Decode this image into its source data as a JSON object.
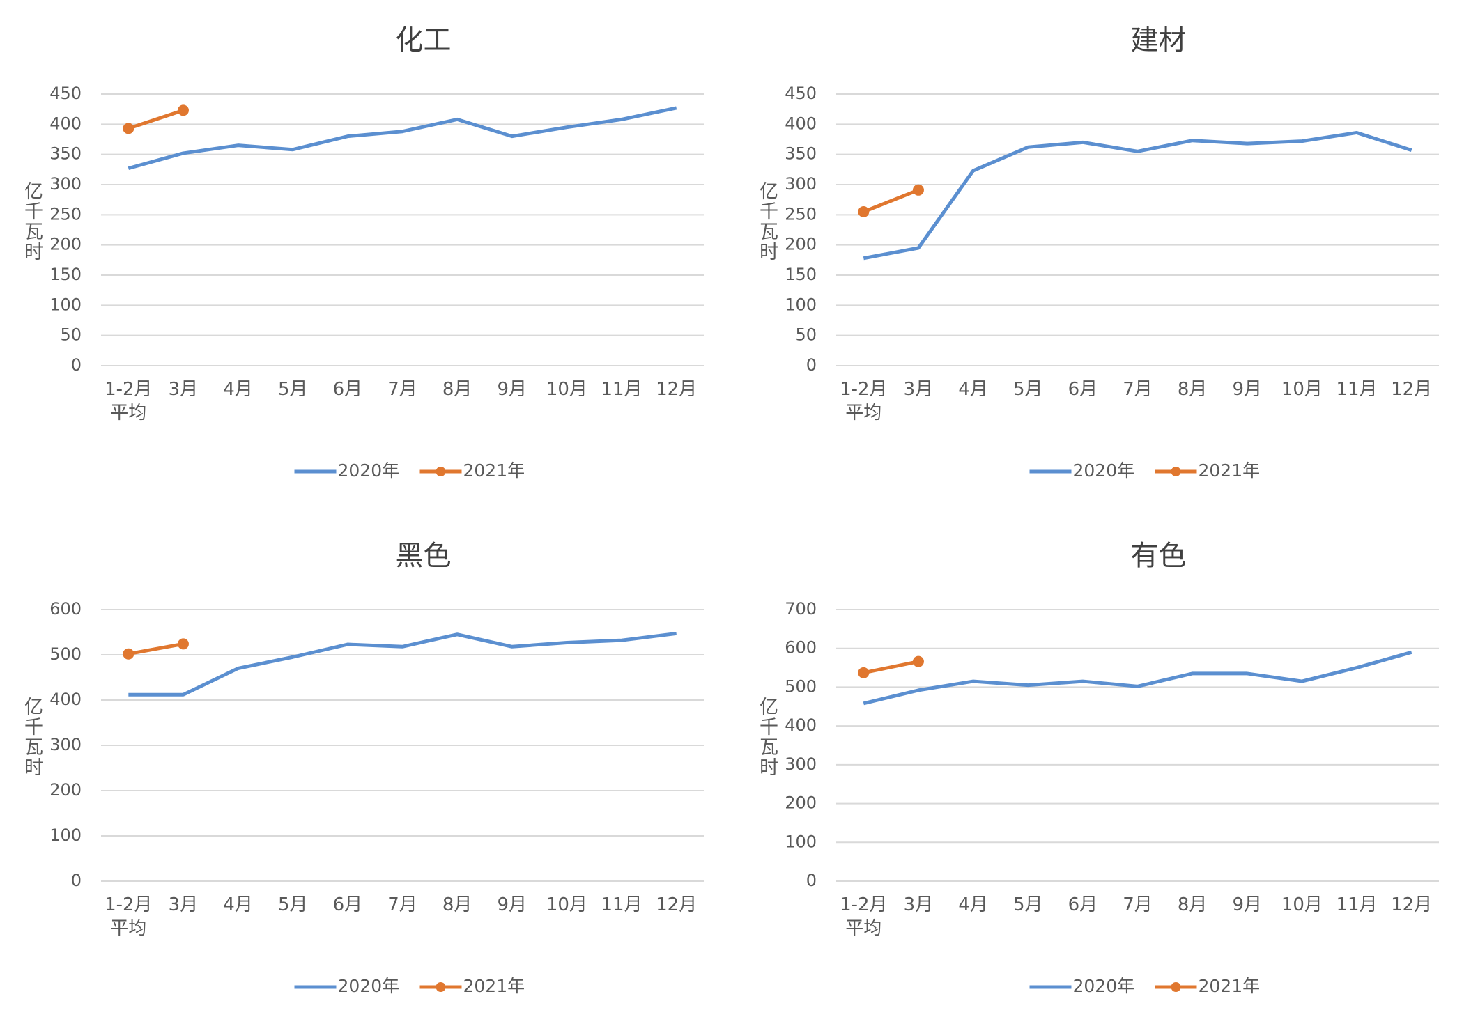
{
  "chart_data": [
    {
      "type": "line",
      "title": "化工",
      "y_label": "亿千瓦时",
      "categories": [
        "1-2月平均",
        "3月",
        "4月",
        "5月",
        "6月",
        "7月",
        "8月",
        "9月",
        "10月",
        "11月",
        "12月"
      ],
      "series": [
        {
          "name": "2020年",
          "color": "#5b8fd0",
          "values": [
            327,
            352,
            365,
            358,
            380,
            388,
            408,
            380,
            395,
            408,
            427
          ]
        },
        {
          "name": "2021年",
          "color": "#e0772f",
          "marker": "circle",
          "values": [
            393,
            423,
            null,
            null,
            null,
            null,
            null,
            null,
            null,
            null,
            null
          ]
        }
      ],
      "ylim": [
        0,
        450
      ],
      "yticks": [
        0,
        50,
        100,
        150,
        200,
        250,
        300,
        350,
        400,
        450
      ],
      "grid": true,
      "legend": "bottom"
    },
    {
      "type": "line",
      "title": "建材",
      "y_label": "亿千瓦时",
      "categories": [
        "1-2月平均",
        "3月",
        "4月",
        "5月",
        "6月",
        "7月",
        "8月",
        "9月",
        "10月",
        "11月",
        "12月"
      ],
      "series": [
        {
          "name": "2020年",
          "color": "#5b8fd0",
          "values": [
            178,
            195,
            323,
            362,
            370,
            355,
            373,
            368,
            372,
            386,
            357
          ]
        },
        {
          "name": "2021年",
          "color": "#e0772f",
          "marker": "circle",
          "values": [
            255,
            291,
            null,
            null,
            null,
            null,
            null,
            null,
            null,
            null,
            null
          ]
        }
      ],
      "ylim": [
        0,
        450
      ],
      "yticks": [
        0,
        50,
        100,
        150,
        200,
        250,
        300,
        350,
        400,
        450
      ],
      "grid": true,
      "legend": "bottom"
    },
    {
      "type": "line",
      "title": "黑色",
      "y_label": "亿千瓦时",
      "categories": [
        "1-2月平均",
        "3月",
        "4月",
        "5月",
        "6月",
        "7月",
        "8月",
        "9月",
        "10月",
        "11月",
        "12月"
      ],
      "series": [
        {
          "name": "2020年",
          "color": "#5b8fd0",
          "values": [
            412,
            412,
            470,
            495,
            523,
            518,
            545,
            518,
            527,
            532,
            547
          ]
        },
        {
          "name": "2021年",
          "color": "#e0772f",
          "marker": "circle",
          "values": [
            502,
            524,
            null,
            null,
            null,
            null,
            null,
            null,
            null,
            null,
            null
          ]
        }
      ],
      "ylim": [
        0,
        600
      ],
      "yticks": [
        0,
        100,
        200,
        300,
        400,
        500,
        600
      ],
      "grid": true,
      "legend": "bottom"
    },
    {
      "type": "line",
      "title": "有色",
      "y_label": "亿千瓦时",
      "categories": [
        "1-2月平均",
        "3月",
        "4月",
        "5月",
        "6月",
        "7月",
        "8月",
        "9月",
        "10月",
        "11月",
        "12月"
      ],
      "series": [
        {
          "name": "2020年",
          "color": "#5b8fd0",
          "values": [
            458,
            492,
            515,
            505,
            515,
            502,
            535,
            535,
            515,
            550,
            590
          ]
        },
        {
          "name": "2021年",
          "color": "#e0772f",
          "marker": "circle",
          "values": [
            537,
            566,
            null,
            null,
            null,
            null,
            null,
            null,
            null,
            null,
            null
          ]
        }
      ],
      "ylim": [
        0,
        700
      ],
      "yticks": [
        0,
        100,
        200,
        300,
        400,
        500,
        600,
        700
      ],
      "grid": true,
      "legend": "bottom"
    }
  ]
}
